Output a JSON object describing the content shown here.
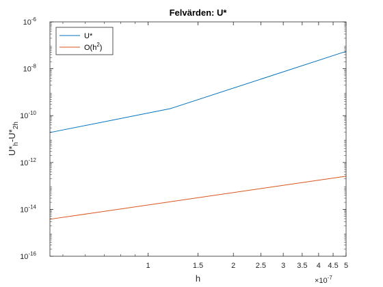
{
  "chart_data": {
    "type": "line",
    "title": "Felvärden: U*",
    "xlabel": "h",
    "ylabel": {
      "base": "U*",
      "sub1": "h",
      "mid": "-U*",
      "sub2": "2h"
    },
    "x_scale": "log",
    "y_scale": "log",
    "x_multiplier_label": {
      "base": "×10",
      "exp": "-7"
    },
    "xlim": [
      0.45,
      5
    ],
    "ylim": [
      1e-16,
      1e-06
    ],
    "x_ticks": [
      1,
      1.5,
      2,
      2.5,
      3,
      3.5,
      4,
      4.5,
      5
    ],
    "x_tick_labels": [
      "1",
      "1.5",
      "2",
      "2.5",
      "3",
      "3.5",
      "4",
      "4.5",
      "5"
    ],
    "y_ticks": [
      {
        "value": 1e-16,
        "base": "10",
        "exp": "-16"
      },
      {
        "value": 1e-14,
        "base": "10",
        "exp": "-14"
      },
      {
        "value": 1e-12,
        "base": "10",
        "exp": "-12"
      },
      {
        "value": 1e-10,
        "base": "10",
        "exp": "-10"
      },
      {
        "value": 1e-08,
        "base": "10",
        "exp": "-8"
      },
      {
        "value": 1e-06,
        "base": "10",
        "exp": "-6"
      }
    ],
    "grid": false,
    "legend_position": "top-left",
    "series": [
      {
        "name": "U*",
        "color": "#0072BD",
        "x": [
          0.45,
          1.2,
          5
        ],
        "y": [
          1.9e-11,
          2e-10,
          5.5e-08
        ]
      },
      {
        "name_parts": {
          "base": "O(h",
          "exp": "2",
          "end": ")"
        },
        "color": "#D95319",
        "x": [
          0.45,
          5
        ],
        "y": [
          3.8e-15,
          2.6e-13
        ]
      }
    ]
  }
}
